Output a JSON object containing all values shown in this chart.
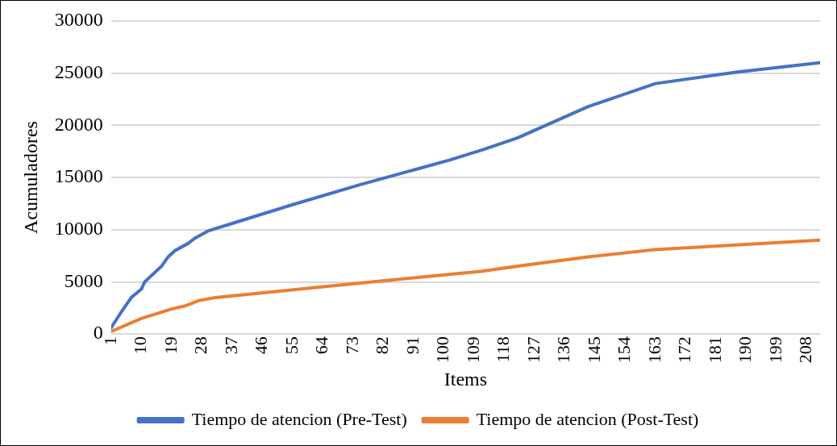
{
  "chart_data": {
    "type": "line",
    "xlabel": "Items",
    "ylabel": "Acumuladores",
    "xlim": [
      1,
      212
    ],
    "xticks": [
      1,
      10,
      19,
      28,
      37,
      46,
      55,
      64,
      73,
      82,
      91,
      100,
      109,
      118,
      127,
      136,
      145,
      154,
      163,
      172,
      181,
      190,
      199,
      208
    ],
    "ylim": [
      0,
      30000
    ],
    "yticks": [
      0,
      5000,
      10000,
      15000,
      20000,
      25000,
      30000
    ],
    "grid": "y",
    "legend": "bottom",
    "marker": "none",
    "line_style": "solid",
    "series": [
      {
        "name": "Tiempo de atencion (Pre-Test)",
        "color": "#4472c4",
        "x": [
          1,
          4,
          7,
          10,
          11,
          16,
          18,
          20,
          24,
          26,
          30,
          38,
          55,
          75,
          102,
          112,
          122,
          143,
          163,
          187,
          212
        ],
        "values": [
          600,
          2100,
          3500,
          4300,
          5000,
          6500,
          7400,
          8000,
          8700,
          9200,
          9900,
          10700,
          12400,
          14300,
          16700,
          17700,
          18800,
          21800,
          24000,
          25100,
          26000
        ]
      },
      {
        "name": "Tiempo de atencion (Post-Test)",
        "color": "#ed7d31",
        "x": [
          1,
          10,
          19,
          23,
          27,
          32,
          66,
          104,
          111,
          122,
          143,
          163,
          212
        ],
        "values": [
          250,
          1500,
          2400,
          2700,
          3200,
          3500,
          4600,
          5800,
          6000,
          6500,
          7400,
          8100,
          9000
        ]
      }
    ]
  }
}
